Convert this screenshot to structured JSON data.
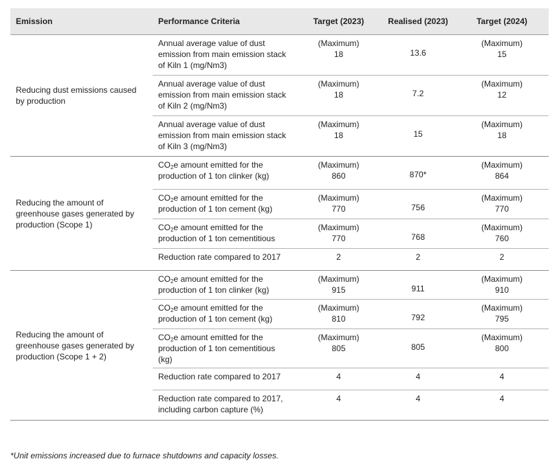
{
  "headers": {
    "emission": "Emission",
    "criteria": "Performance Criteria",
    "target_2023": "Target (2023)",
    "realised_2023": "Realised (2023)",
    "target_2024": "Target (2024)"
  },
  "max_label": "(Maximum)",
  "groups": [
    {
      "emission": "Reducing dust emissions caused by production",
      "rows": [
        {
          "criteria": "Annual average value of dust emission from main emission stack of Kiln 1 (mg/Nm3)",
          "target_2023": "18",
          "target_2023_max": true,
          "realised_2023": "13.6",
          "target_2024": "15",
          "target_2024_max": true
        },
        {
          "criteria": "Annual average value of dust emission from main emission stack of Kiln 2 (mg/Nm3)",
          "target_2023": "18",
          "target_2023_max": true,
          "realised_2023": "7.2",
          "target_2024": "12",
          "target_2024_max": true
        },
        {
          "criteria": "Annual average value of dust emission from main emission stack of Kiln 3 (mg/Nm3)",
          "target_2023": "18",
          "target_2023_max": true,
          "realised_2023": "15",
          "target_2024": "18",
          "target_2024_max": true
        }
      ]
    },
    {
      "emission": "Reducing the amount of greenhouse gases generated by production (Scope 1)",
      "rows": [
        {
          "co2": true,
          "criteria_rest": "e amount emitted for the production of 1 ton clinker (kg)",
          "target_2023": "860",
          "target_2023_max": true,
          "realised_2023": "870*",
          "target_2024": "864",
          "target_2024_max": true
        },
        {
          "co2": true,
          "criteria_rest": "e amount emitted for the production of 1 ton cement (kg)",
          "target_2023": "770",
          "target_2023_max": true,
          "realised_2023": "756",
          "target_2024": "770",
          "target_2024_max": true
        },
        {
          "co2": true,
          "criteria_rest": "e amount emitted for the production of 1 ton cementitious",
          "target_2023": "770",
          "target_2023_max": true,
          "realised_2023": "768",
          "target_2024": "760",
          "target_2024_max": true
        },
        {
          "criteria": "Reduction rate compared to 2017",
          "target_2023": "2",
          "realised_2023": "2",
          "target_2024": "2"
        }
      ]
    },
    {
      "emission": "Reducing the amount of greenhouse gases generated by production (Scope 1 + 2)",
      "rows": [
        {
          "co2": true,
          "criteria_rest": "e amount emitted for the production of 1 ton clinker (kg)",
          "target_2023": "915",
          "target_2023_max": true,
          "realised_2023": "911",
          "target_2024": "910",
          "target_2024_max": true
        },
        {
          "co2": true,
          "criteria_rest": "e amount emitted for the production of 1 ton cement (kg)",
          "target_2023": "810",
          "target_2023_max": true,
          "realised_2023": "792",
          "target_2024": "795",
          "target_2024_max": true
        },
        {
          "co2": true,
          "criteria_rest": "e amount emitted for the production of 1 ton cementitious (kg)",
          "target_2023": "805",
          "target_2023_max": true,
          "realised_2023": "805",
          "target_2024": "800",
          "target_2024_max": true
        },
        {
          "criteria": "Reduction rate compared to 2017",
          "target_2023": "4",
          "realised_2023": "4",
          "target_2024": "4"
        },
        {
          "criteria": "Reduction rate compared to 2017, including carbon capture (%)",
          "target_2023": "4",
          "realised_2023": "4",
          "target_2024": "4"
        }
      ]
    }
  ],
  "co2_prefix": "CO",
  "co2_sub": "2",
  "footnote": "*Unit emissions increased due to furnace shutdowns and capacity losses."
}
